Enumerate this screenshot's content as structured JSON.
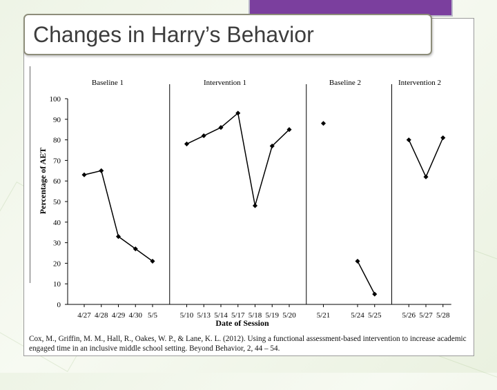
{
  "slide": {
    "title": "Changes in Harry’s Behavior",
    "citation": "Cox, M., Griffin, M. M., Hall, R., Oakes, W. P., & Lane, K. L. (2012). Using a functional assessment-based intervention to increase academic engaged time in an inclusive middle school setting. Beyond Behavior, 2, 44 – 54."
  },
  "colors": {
    "accent": "#7b3f9e",
    "line": "#000000",
    "background": "#eef4e6"
  },
  "chart_data": {
    "type": "line",
    "title": "",
    "xlabel": "Date of Session",
    "ylabel": "Percentage of AET",
    "ylim": [
      0,
      100
    ],
    "y_ticks": [
      0,
      10,
      20,
      30,
      40,
      50,
      60,
      70,
      80,
      90,
      100
    ],
    "grid": false,
    "phases": [
      "Baseline 1",
      "Intervention 1",
      "Baseline 2",
      "Intervention 2"
    ],
    "x_ticks": [
      "4/27",
      "4/28",
      "4/29",
      "4/30",
      "5/5",
      "5/10",
      "5/13",
      "5/14",
      "5/17",
      "5/18",
      "5/19",
      "5/20",
      "5/21",
      "5/24",
      "5/25",
      "5/26",
      "5/27",
      "5/28"
    ],
    "series": [
      {
        "x": [
          "4/27",
          "4/28",
          "4/29",
          "4/30",
          "5/5"
        ],
        "values": [
          63,
          65,
          33,
          27,
          21
        ]
      },
      {
        "x": [
          "5/10",
          "5/13",
          "5/14",
          "5/17",
          "5/18",
          "5/19",
          "5/20"
        ],
        "values": [
          78,
          82,
          86,
          93,
          48,
          77,
          85
        ]
      },
      {
        "x": [
          "5/21"
        ],
        "values": [
          88
        ]
      },
      {
        "x": [
          "5/24",
          "5/25"
        ],
        "values": [
          21,
          5
        ]
      },
      {
        "x": [
          "5/26",
          "5/27",
          "5/28"
        ],
        "values": [
          80,
          62,
          81
        ]
      }
    ]
  }
}
